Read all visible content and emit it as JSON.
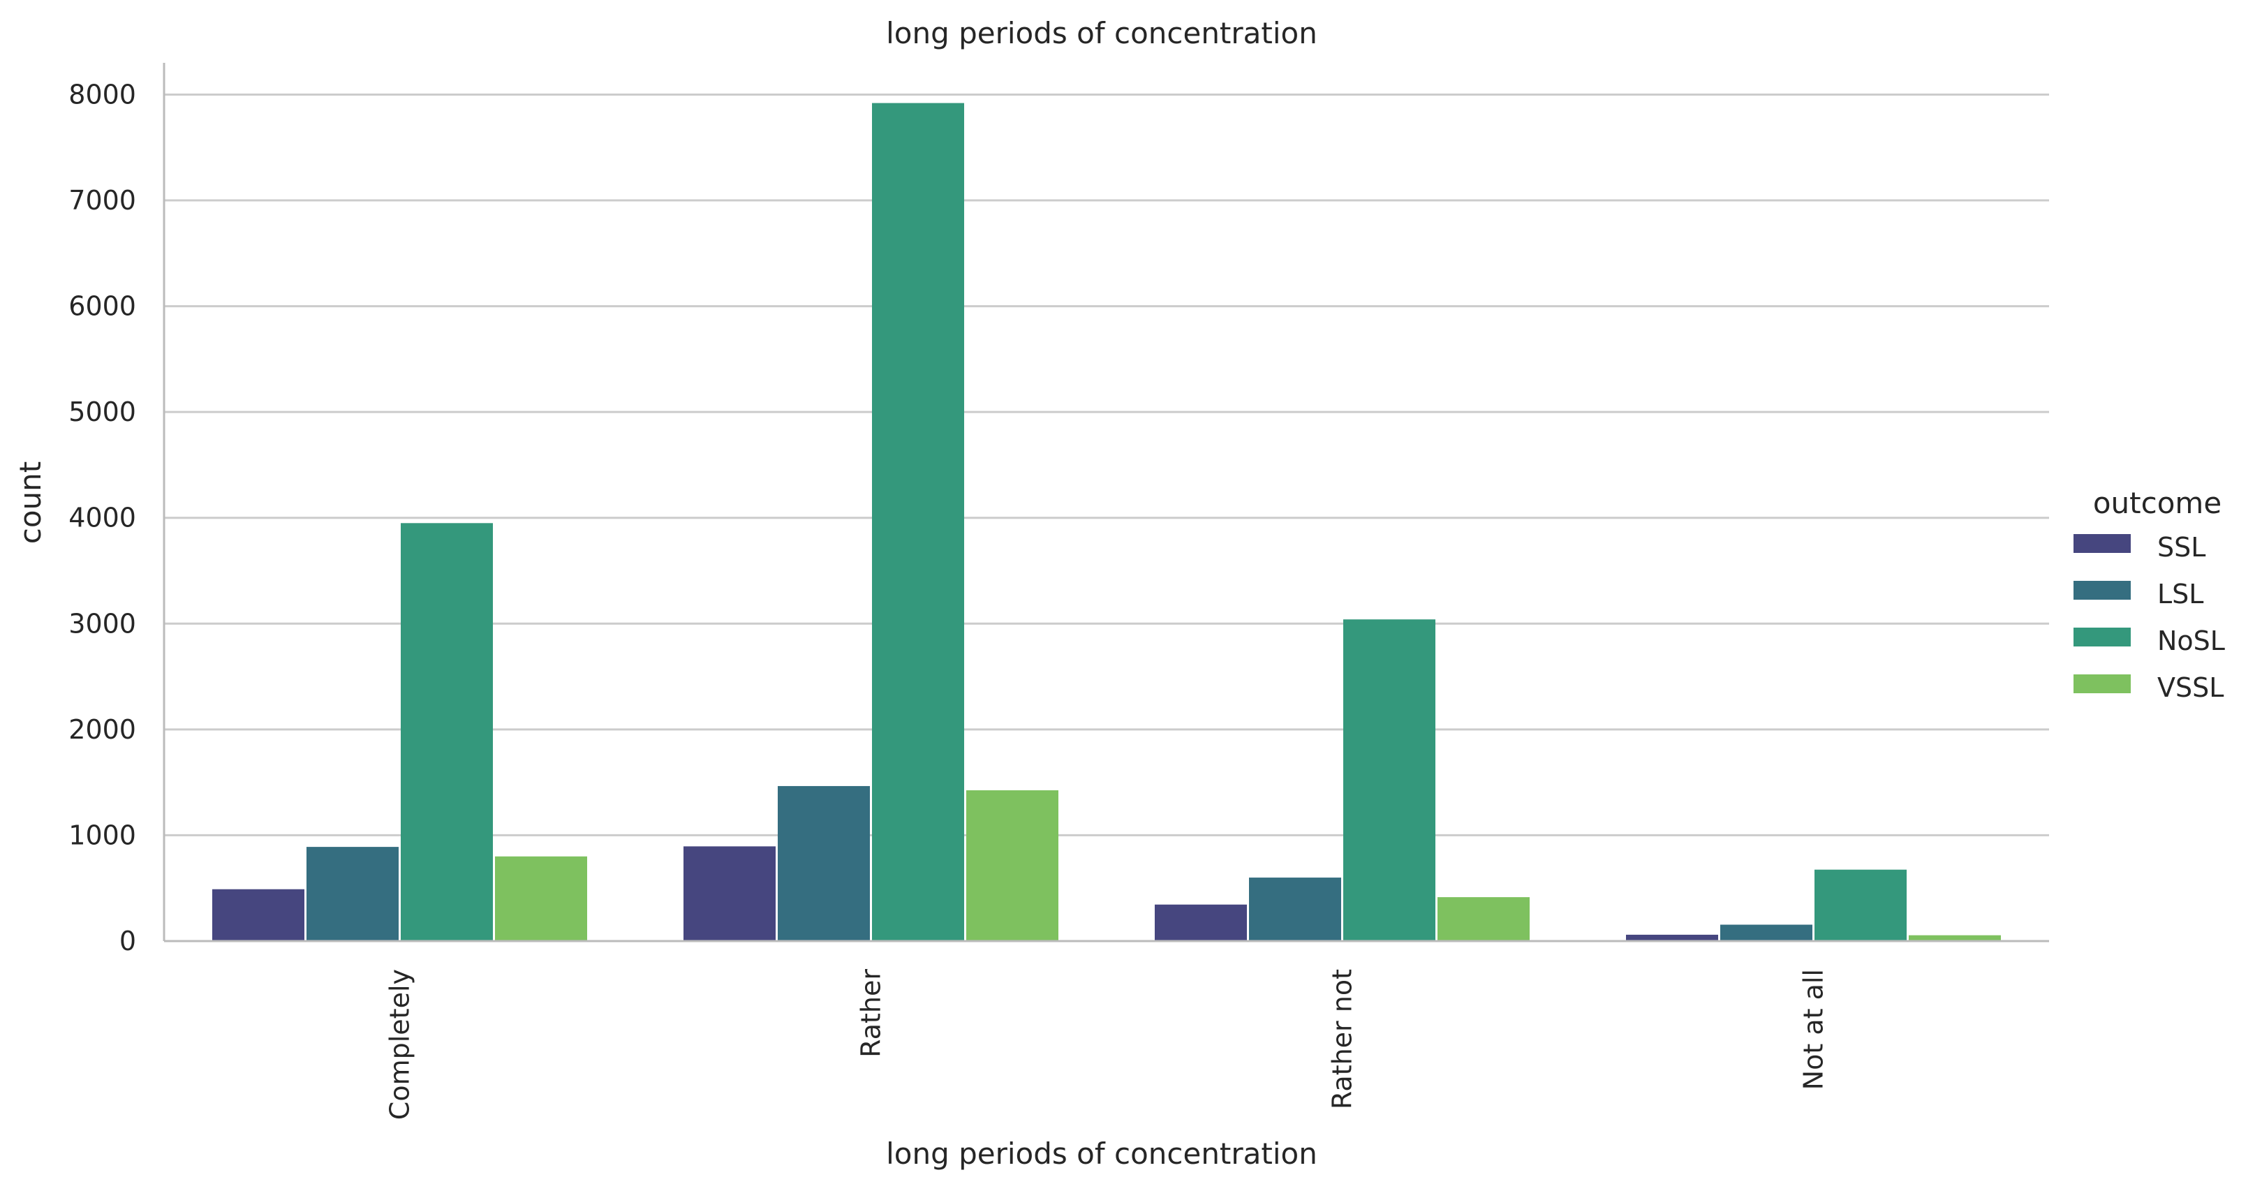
{
  "chart_data": {
    "type": "bar",
    "title": "long periods of concentration",
    "xlabel": "long periods of concentration",
    "ylabel": "count",
    "categories": [
      "Completely",
      "Rather",
      "Rather not",
      "Not at all"
    ],
    "series": [
      {
        "name": "SSL",
        "color": "#46467f",
        "values": [
          490,
          895,
          345,
          60
        ]
      },
      {
        "name": "LSL",
        "color": "#356e80",
        "values": [
          890,
          1465,
          600,
          155
        ]
      },
      {
        "name": "NoSL",
        "color": "#34987c",
        "values": [
          3950,
          7920,
          3040,
          675
        ]
      },
      {
        "name": "VSSL",
        "color": "#7ec15f",
        "values": [
          800,
          1425,
          415,
          55
        ]
      }
    ],
    "ylim": [
      0,
      8300
    ],
    "yticks": [
      0,
      1000,
      2000,
      3000,
      4000,
      5000,
      6000,
      7000,
      8000
    ],
    "grid": true,
    "legend": {
      "title": "outcome",
      "placement": "right"
    }
  }
}
